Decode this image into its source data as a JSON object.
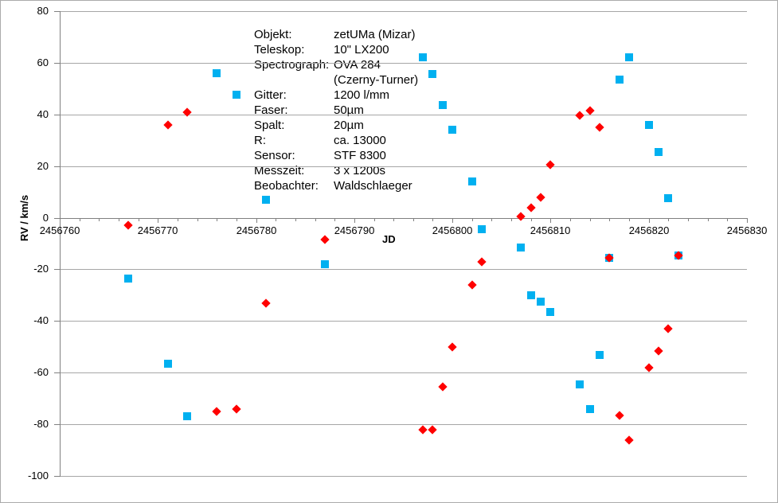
{
  "info_panel": {
    "rows": [
      {
        "label": "Objekt:",
        "value": "zetUMa (Mizar)"
      },
      {
        "label": "Teleskop:",
        "value": "10\" LX200"
      },
      {
        "label": "Spectrograph:",
        "value": "OVA 284"
      },
      {
        "label": "",
        "value": "(Czerny-Turner)"
      },
      {
        "label": "Gitter:",
        "value": "1200 l/mm"
      },
      {
        "label": "Faser:",
        "value": "50µm"
      },
      {
        "label": "Spalt:",
        "value": "20µm"
      },
      {
        "label": "R:",
        "value": "ca. 13000"
      },
      {
        "label": "Sensor:",
        "value": "STF 8300"
      },
      {
        "label": "Messzeit:",
        "value": "3 x 1200s"
      },
      {
        "label": "Beobachter:",
        "value": "Waldschlaeger"
      }
    ]
  },
  "chart_data": {
    "type": "scatter",
    "title": "",
    "xlabel": "JD",
    "ylabel": "RV / km/s",
    "xlim": [
      2456760,
      2456830
    ],
    "ylim": [
      -100,
      80
    ],
    "x_major_step": 10,
    "x_minor_step": 2,
    "y_major_step": 20,
    "grid": "horizontal",
    "legend": "none",
    "x_ticks": [
      "2456760",
      "2456770",
      "2456780",
      "2456790",
      "2456800",
      "2456810",
      "2456820",
      "2456830"
    ],
    "y_ticks": [
      "80",
      "60",
      "40",
      "20",
      "0",
      "-20",
      "-40",
      "-60",
      "-80",
      "-100"
    ],
    "series": [
      {
        "name": "blue-squares",
        "marker": "square",
        "color": "#00B0F0",
        "points": [
          [
            2456767,
            -23.5
          ],
          [
            2456771,
            -56.5
          ],
          [
            2456773,
            -77
          ],
          [
            2456776,
            56
          ],
          [
            2456778,
            47.5
          ],
          [
            2456781,
            7
          ],
          [
            2456787,
            -18
          ],
          [
            2456797,
            62
          ],
          [
            2456798,
            55.5
          ],
          [
            2456799,
            43.5
          ],
          [
            2456800,
            34
          ],
          [
            2456802,
            14
          ],
          [
            2456803,
            -4.5
          ],
          [
            2456807,
            -11.5
          ],
          [
            2456808,
            -30
          ],
          [
            2456809,
            -32.5
          ],
          [
            2456810,
            -36.5
          ],
          [
            2456813,
            -64.5
          ],
          [
            2456814,
            -74
          ],
          [
            2456815,
            -53
          ],
          [
            2456816,
            -15.5
          ],
          [
            2456817,
            53.5
          ],
          [
            2456818,
            62
          ],
          [
            2456820,
            36
          ],
          [
            2456821,
            25.5
          ],
          [
            2456822,
            7.5
          ],
          [
            2456823,
            -14.5
          ]
        ]
      },
      {
        "name": "red-diamonds",
        "marker": "diamond",
        "color": "#FF0000",
        "points": [
          [
            2456767,
            -3
          ],
          [
            2456771,
            36
          ],
          [
            2456773,
            41
          ],
          [
            2456776,
            -75
          ],
          [
            2456778,
            -74
          ],
          [
            2456781,
            -33
          ],
          [
            2456787,
            -8.5
          ],
          [
            2456797,
            -82
          ],
          [
            2456798,
            -82
          ],
          [
            2456799,
            -65.5
          ],
          [
            2456800,
            -50
          ],
          [
            2456802,
            -26
          ],
          [
            2456803,
            -17
          ],
          [
            2456807,
            0.5
          ],
          [
            2456808,
            4
          ],
          [
            2456809,
            8
          ],
          [
            2456810,
            20.5
          ],
          [
            2456813,
            39.5
          ],
          [
            2456814,
            41.5
          ],
          [
            2456815,
            35
          ],
          [
            2456816,
            -15.5
          ],
          [
            2456817,
            -76.5
          ],
          [
            2456818,
            -86
          ],
          [
            2456820,
            -58
          ],
          [
            2456821,
            -51.5
          ],
          [
            2456822,
            -43
          ],
          [
            2456823,
            -14.5
          ]
        ]
      }
    ]
  },
  "colors": {
    "background": "#ffffff",
    "gridline": "#a6a6a6",
    "axis": "#808080",
    "series_blue": "#00B0F0",
    "series_red": "#FF0000",
    "text": "#000000"
  }
}
